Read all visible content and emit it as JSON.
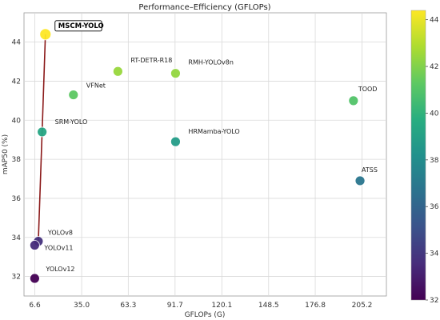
{
  "chart_data": {
    "type": "scatter",
    "title": "Performance–Efficiency (GFLOPs)",
    "xlabel": "GFLOPs (G)",
    "ylabel": "mAP50 (%)",
    "xlim": [
      0,
      220
    ],
    "ylim": [
      31,
      45.5
    ],
    "x_ticks": [
      "6.6",
      "35.0",
      "63.3",
      "91.7",
      "120.1",
      "148.5",
      "176.8",
      "205.2"
    ],
    "x_tick_values": [
      6.6,
      35.0,
      63.3,
      91.7,
      120.1,
      148.5,
      176.8,
      205.2
    ],
    "y_ticks": [
      "32",
      "34",
      "36",
      "38",
      "40",
      "42",
      "44"
    ],
    "y_tick_values": [
      32,
      34,
      36,
      38,
      40,
      42,
      44
    ],
    "grid": true,
    "colorbar": {
      "colormap": "viridis",
      "range": [
        32,
        44.4
      ],
      "ticks": [
        "32",
        "34",
        "36",
        "38",
        "40",
        "42",
        "44"
      ],
      "tick_values": [
        32,
        34,
        36,
        38,
        40,
        42,
        44
      ]
    },
    "points": [
      {
        "label": "MSCM-YOLO",
        "x": 13.0,
        "y": 44.4,
        "highlight": true
      },
      {
        "label": "RT-DETR-R18",
        "x": 57.0,
        "y": 42.5
      },
      {
        "label": "RMH-YOLOv8n",
        "x": 92.0,
        "y": 42.4
      },
      {
        "label": "VFNet",
        "x": 30.0,
        "y": 41.3
      },
      {
        "label": "TOOD",
        "x": 200.0,
        "y": 41.0
      },
      {
        "label": "SRM-YOLO",
        "x": 11.0,
        "y": 39.4
      },
      {
        "label": "HRMamba-YOLO",
        "x": 92.0,
        "y": 38.9
      },
      {
        "label": "ATSS",
        "x": 204.0,
        "y": 36.9
      },
      {
        "label": "YOLOv8",
        "x": 8.7,
        "y": 33.8
      },
      {
        "label": "YOLOv11",
        "x": 6.5,
        "y": 33.6
      },
      {
        "label": "YOLOv12",
        "x": 6.5,
        "y": 31.9
      }
    ],
    "trend_line": [
      "YOLOv11",
      "YOLOv8",
      "SRM-YOLO",
      "MSCM-YOLO"
    ],
    "trend_color": "#8b1a1a"
  }
}
